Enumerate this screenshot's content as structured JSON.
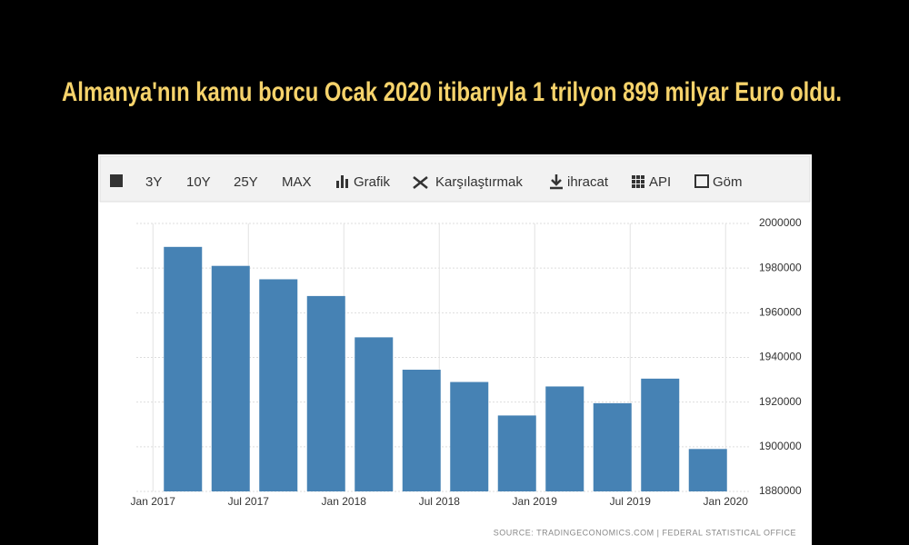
{
  "headline": "Almanya'nın kamu borcu Ocak 2020 itibarıyla 1 trilyon 899 milyar Euro oldu.",
  "toolbar": {
    "items": [
      "3Y",
      "10Y",
      "25Y",
      "MAX",
      "Grafik",
      "Karşılaştırmak",
      "ihracat",
      "API",
      "Göm"
    ]
  },
  "chart_data": {
    "type": "bar",
    "categories": [
      null,
      null,
      null,
      null,
      null,
      null,
      null,
      null,
      null,
      null,
      null,
      null
    ],
    "values": [
      1989500,
      1981000,
      1975000,
      1967500,
      1949000,
      1934500,
      1929000,
      1914000,
      1927000,
      1919500,
      1930500,
      1899000
    ],
    "color": "#4682b4",
    "x_labels": [
      "Jan 2017",
      "Jul 2017",
      "Jan 2018",
      "Jul 2018",
      "Jan 2019",
      "Jul 2019",
      "Jan 2020"
    ],
    "ylim": [
      1880000,
      2000000
    ],
    "yticks": [
      1880000,
      1900000,
      1920000,
      1940000,
      1960000,
      1980000,
      2000000
    ],
    "grid": true,
    "source": "SOURCE: TRADINGECONOMICS.COM  |  FEDERAL STATISTICAL OFFICE"
  }
}
